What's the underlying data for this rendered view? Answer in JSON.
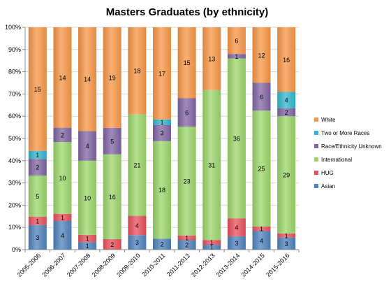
{
  "chart_data": {
    "type": "bar",
    "stacked": "percent",
    "title": "Masters Graduates (by ethnicity)",
    "xlabel": "",
    "ylabel": "",
    "ylim": [
      0,
      100
    ],
    "yticks": [
      "0%",
      "10%",
      "20%",
      "30%",
      "40%",
      "50%",
      "60%",
      "70%",
      "80%",
      "90%",
      "100%"
    ],
    "categories": [
      "2005-2006",
      "2006-2007",
      "2007-2008",
      "2008-2009",
      "2009-2010",
      "2010-2011",
      "2011-2012",
      "2012-2013",
      "2013-2014",
      "2014-2015",
      "2015-2016"
    ],
    "series": [
      {
        "name": "Asian",
        "color": "#4f81bd",
        "values": [
          3,
          4,
          1,
          0,
          3,
          2,
          2,
          1,
          3,
          4,
          3
        ]
      },
      {
        "name": "HUG",
        "color": "#e8505b",
        "values": [
          1,
          1,
          1,
          2,
          4,
          0,
          1,
          1,
          4,
          1,
          1
        ]
      },
      {
        "name": "International",
        "color": "#9bd56a",
        "values": [
          5,
          10,
          10,
          16,
          21,
          18,
          23,
          31,
          36,
          25,
          29
        ]
      },
      {
        "name": "Race/Ethnicity Unknown",
        "color": "#8064a2",
        "values": [
          2,
          2,
          4,
          5,
          0,
          3,
          6,
          0,
          1,
          6,
          2
        ]
      },
      {
        "name": "Two or More Races",
        "color": "#31b6cc",
        "values": [
          1,
          0,
          0,
          0,
          0,
          1,
          0,
          0,
          0,
          0,
          4
        ]
      },
      {
        "name": "White",
        "color": "#f79646",
        "values": [
          15,
          14,
          14,
          19,
          18,
          17,
          15,
          13,
          6,
          12,
          16
        ]
      }
    ],
    "legend": {
      "position": "right",
      "order": [
        "White",
        "Two or More Races",
        "Race/Ethnicity Unknown",
        "International",
        "HUG",
        "Asian"
      ]
    },
    "grid": true
  }
}
